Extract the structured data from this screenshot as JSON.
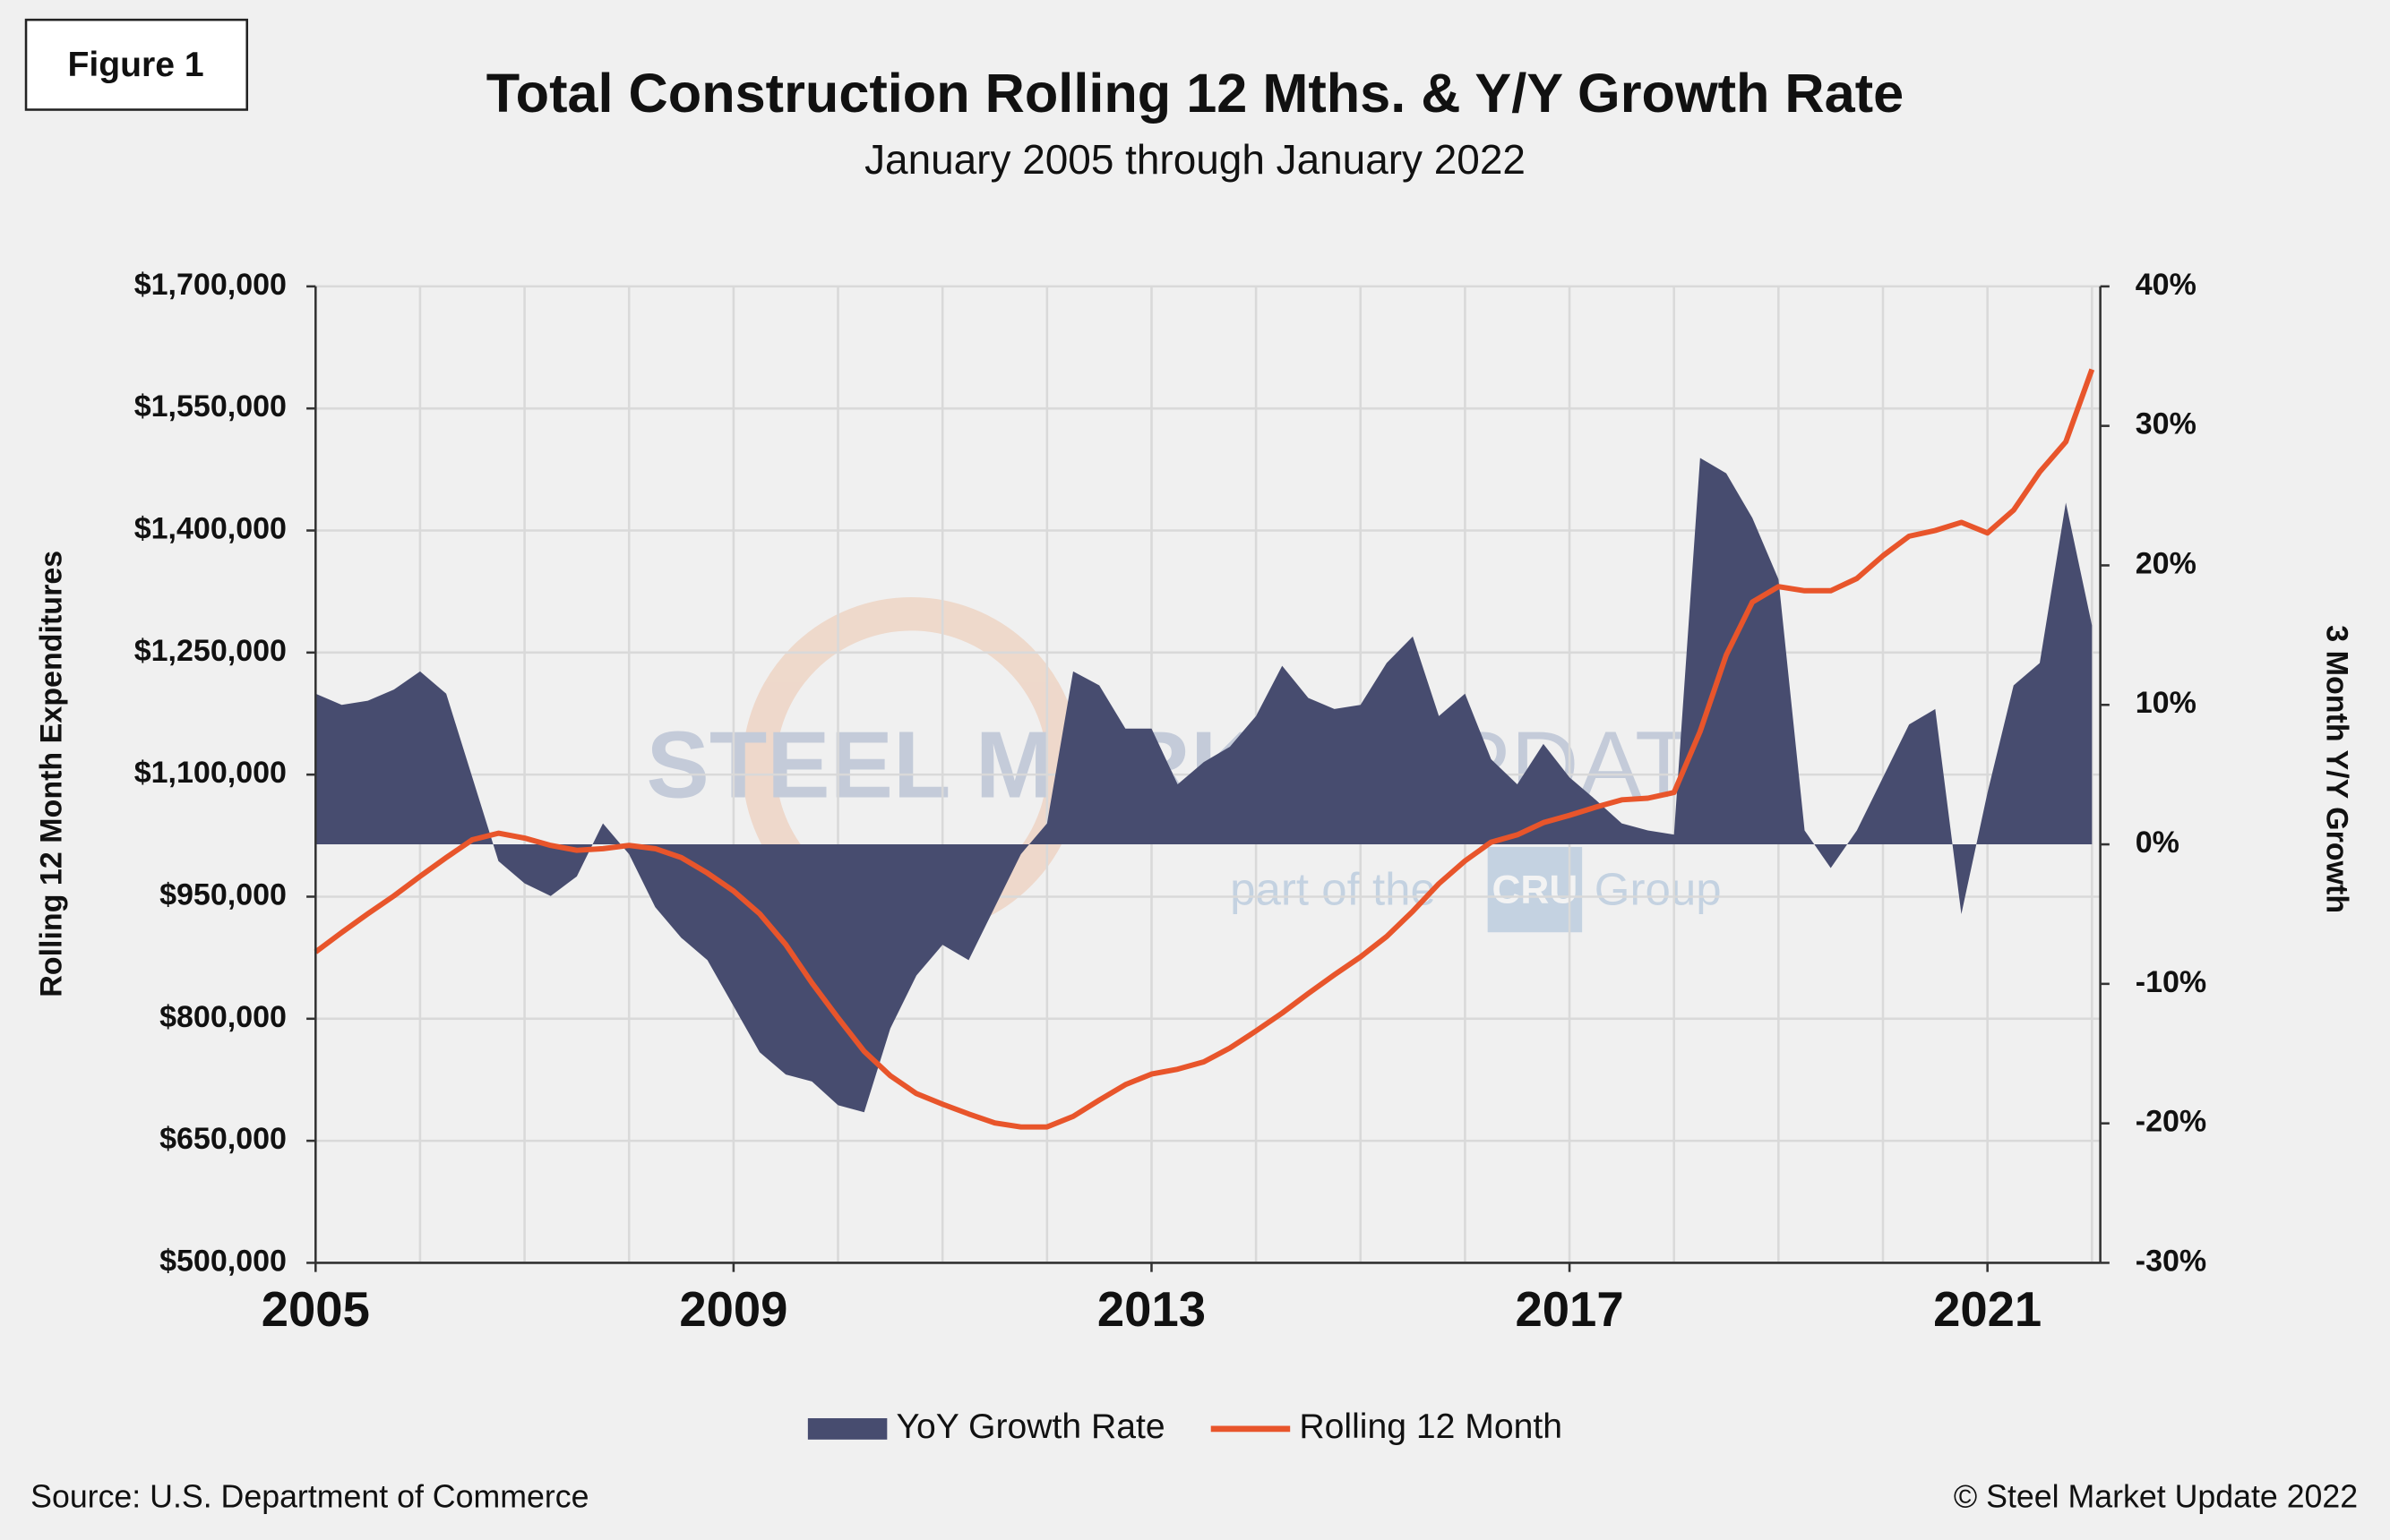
{
  "figure_label": "Figure 1",
  "source": "Source: U.S. Department of Commerce",
  "copyright": "© Steel Market Update 2022",
  "watermark": {
    "line1a": "STEEL MARKET",
    "line1b": "UPDATE",
    "line2a": "part of the",
    "logo": "CRU",
    "line2b": "Group"
  },
  "chart_data": {
    "type": "combo",
    "title": "Total Construction Rolling 12 Mths. & Y/Y Growth Rate",
    "subtitle": "January 2005 through January 2022",
    "y_label": "Rolling 12 Month Expenditures",
    "y2_label": "3 Month Y/Y Growth",
    "x": [
      2005,
      2005.25,
      2005.5,
      2005.75,
      2006,
      2006.25,
      2006.5,
      2006.75,
      2007,
      2007.25,
      2007.5,
      2007.75,
      2008,
      2008.25,
      2008.5,
      2008.75,
      2009,
      2009.25,
      2009.5,
      2009.75,
      2010,
      2010.25,
      2010.5,
      2010.75,
      2011,
      2011.25,
      2011.5,
      2011.75,
      2012,
      2012.25,
      2012.5,
      2012.75,
      2013,
      2013.25,
      2013.5,
      2013.75,
      2014,
      2014.25,
      2014.5,
      2014.75,
      2015,
      2015.25,
      2015.5,
      2015.75,
      2016,
      2016.25,
      2016.5,
      2016.75,
      2017,
      2017.25,
      2017.5,
      2017.75,
      2018,
      2018.25,
      2018.5,
      2018.75,
      2019,
      2019.25,
      2019.5,
      2019.75,
      2020,
      2020.25,
      2020.5,
      2020.75,
      2021,
      2021.25,
      2021.5,
      2021.75,
      2022
    ],
    "xlim": [
      2005,
      2022.08
    ],
    "xticks": [
      2005,
      2009,
      2013,
      2017,
      2021
    ],
    "xgrid": [
      2006,
      2007,
      2008,
      2009,
      2010,
      2011,
      2012,
      2013,
      2014,
      2015,
      2016,
      2017,
      2018,
      2019,
      2020,
      2021,
      2022
    ],
    "ylim": [
      500000,
      1700000
    ],
    "yticks": [
      {
        "value": 500000,
        "label": "$500,000"
      },
      {
        "value": 650000,
        "label": "$650,000"
      },
      {
        "value": 800000,
        "label": "$800,000"
      },
      {
        "value": 950000,
        "label": "$950,000"
      },
      {
        "value": 1100000,
        "label": "$1,100,000"
      },
      {
        "value": 1250000,
        "label": "$1,250,000"
      },
      {
        "value": 1400000,
        "label": "$1,400,000"
      },
      {
        "value": 1550000,
        "label": "$1,550,000"
      },
      {
        "value": 1700000,
        "label": "$1,700,000"
      }
    ],
    "y2lim": [
      -30,
      40
    ],
    "y2ticks": [
      {
        "value": -30,
        "label": "-30%"
      },
      {
        "value": -20,
        "label": "-20%"
      },
      {
        "value": -10,
        "label": "-10%"
      },
      {
        "value": 0,
        "label": "0%"
      },
      {
        "value": 10,
        "label": "10%"
      },
      {
        "value": 20,
        "label": "20%"
      },
      {
        "value": 30,
        "label": "30%"
      },
      {
        "value": 40,
        "label": "40%"
      }
    ],
    "grid": true,
    "legend": "bottom",
    "series": [
      {
        "name": "YoY Growth Rate",
        "type": "area",
        "axis": "y2",
        "color": "#474c6f",
        "values": [
          10.8,
          10.0,
          10.3,
          11.1,
          12.4,
          10.8,
          4.8,
          -1.2,
          -2.8,
          -3.7,
          -2.3,
          1.5,
          -0.7,
          -4.5,
          -6.7,
          -8.3,
          -11.6,
          -14.9,
          -16.5,
          -17.0,
          -18.7,
          -19.2,
          -13.2,
          -9.4,
          -7.2,
          -8.3,
          -4.5,
          -0.7,
          1.5,
          12.4,
          11.4,
          8.3,
          8.3,
          4.3,
          5.9,
          7.0,
          9.2,
          12.8,
          10.5,
          9.7,
          10.0,
          13.0,
          14.9,
          9.2,
          10.8,
          6.1,
          4.3,
          7.2,
          4.8,
          3.2,
          1.5,
          1.0,
          0.7,
          27.7,
          26.6,
          23.4,
          19.0,
          1.0,
          -1.7,
          1.0,
          4.8,
          8.6,
          9.7,
          -5.0,
          3.7,
          11.4,
          13.0,
          24.5,
          15.7
        ]
      },
      {
        "name": "Rolling 12 Month",
        "type": "line",
        "axis": "y",
        "color": "#e8552b",
        "values": [
          882000,
          906000,
          929000,
          951000,
          975000,
          998000,
          1020000,
          1028000,
          1022000,
          1013000,
          1007000,
          1009000,
          1013000,
          1009000,
          998000,
          979000,
          957000,
          929000,
          891000,
          844000,
          801000,
          760000,
          730000,
          708000,
          695000,
          683000,
          672000,
          667000,
          667000,
          680000,
          700000,
          719000,
          732000,
          738000,
          747000,
          764000,
          785000,
          807000,
          831000,
          854000,
          876000,
          901000,
          932000,
          966000,
          994000,
          1017000,
          1026000,
          1041000,
          1050000,
          1060000,
          1069000,
          1071000,
          1078000,
          1153000,
          1247000,
          1312000,
          1331000,
          1326000,
          1326000,
          1341000,
          1369000,
          1393000,
          1400000,
          1410000,
          1397000,
          1425000,
          1472000,
          1509000,
          1598000
        ]
      }
    ]
  }
}
